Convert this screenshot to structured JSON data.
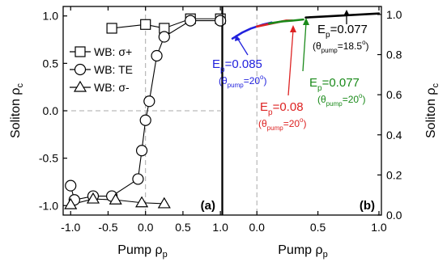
{
  "chart_data": [
    {
      "type": "scatter",
      "panel_label": "(a)",
      "ylabel_main": "Soliton ρ",
      "ylabel_sub": "c",
      "xlabel_main": "Pump ρ",
      "xlabel_sub": "p",
      "xlim": [
        -1.1,
        1.02
      ],
      "ylim": [
        -1.1,
        1.1
      ],
      "x_ticks": [
        -1.0,
        -0.5,
        0.0,
        0.5,
        1.0
      ],
      "x_tick_labels": [
        "-1.0",
        "-0.5",
        "0.0",
        "0.5",
        "1.0"
      ],
      "y_ticks": [
        -1.0,
        -0.5,
        0.0,
        0.5,
        1.0
      ],
      "y_tick_labels": [
        "-1.0",
        "-0.5",
        "0.0",
        "0.5",
        "1.0"
      ],
      "reference_lines": {
        "x": 0,
        "y": 0,
        "style": "dashed",
        "color": "#aaaaaa"
      },
      "legend_position": "upper-left",
      "series": [
        {
          "name": "WB: σ+",
          "marker": "square",
          "x": [
            -0.45,
            0.0,
            0.25,
            0.6,
            1.0
          ],
          "y": [
            0.87,
            0.91,
            0.87,
            0.97,
            0.97
          ]
        },
        {
          "name": "WB: TE",
          "marker": "circle",
          "x": [
            -1.0,
            -0.95,
            -0.7,
            -0.45,
            -0.1,
            -0.05,
            0.0,
            0.05,
            0.15,
            0.25,
            0.6,
            1.0
          ],
          "y": [
            -0.79,
            -0.94,
            -0.9,
            -0.9,
            -0.72,
            -0.42,
            -0.1,
            0.1,
            0.58,
            0.78,
            0.95,
            0.95
          ]
        },
        {
          "name": "WB: σ-",
          "marker": "triangle",
          "x": [
            -1.0,
            -0.7,
            -0.4,
            -0.05,
            0.25
          ],
          "y": [
            -0.99,
            -0.93,
            -0.94,
            -0.97,
            -0.98
          ]
        }
      ]
    },
    {
      "type": "line",
      "panel_label": "(b)",
      "ylabel_main": "Soliton ρ",
      "ylabel_sub": "c",
      "xlabel_main": "Pump ρ",
      "xlabel_sub": "p",
      "xlim": [
        -0.28,
        1.02
      ],
      "ylim": [
        0.0,
        1.04
      ],
      "x_ticks": [
        0.0,
        0.5,
        1.0
      ],
      "x_tick_labels": [
        "0.0",
        "0.5",
        "1.0"
      ],
      "y_ticks": [
        0.0,
        0.2,
        0.4,
        0.6,
        0.8,
        1.0
      ],
      "y_tick_labels": [
        "0.0",
        "0.2",
        "0.4",
        "0.6",
        "0.8",
        "1.0"
      ],
      "reference_lines": {
        "x": 0,
        "style": "dashed",
        "color": "#aaaaaa"
      },
      "series": [
        {
          "color": "#2222dd",
          "x": [
            -0.2,
            -0.12,
            -0.05,
            0.0,
            0.05,
            0.12
          ],
          "y": [
            0.88,
            0.91,
            0.93,
            0.94,
            0.95,
            0.96
          ]
        },
        {
          "color": "#dd2222",
          "x": [
            0.0,
            0.08,
            0.16,
            0.24,
            0.29
          ],
          "y": [
            0.94,
            0.95,
            0.96,
            0.97,
            0.97
          ]
        },
        {
          "color": "#1a8a1a",
          "x": [
            0.1,
            0.2,
            0.3,
            0.38
          ],
          "y": [
            0.955,
            0.965,
            0.97,
            0.975
          ]
        },
        {
          "color": "#000000",
          "x": [
            0.4,
            0.55,
            0.7,
            0.85,
            1.0
          ],
          "y": [
            0.985,
            0.99,
            0.995,
            1.0,
            1.005
          ]
        }
      ],
      "annotations": [
        {
          "color": "#2222dd",
          "line1": "E",
          "line1_sub": "p",
          "line1_rest": "=0.085",
          "line2": "(θ",
          "line2_sub": "pump",
          "line2_rest": "=20",
          "line2_deg": "o",
          "line2_end": ")"
        },
        {
          "color": "#dd2222",
          "line1": "E",
          "line1_sub": "p",
          "line1_rest": "=0.08",
          "line2": "(θ",
          "line2_sub": "pump",
          "line2_rest": "=20",
          "line2_deg": "o",
          "line2_end": ")"
        },
        {
          "color": "#1a8a1a",
          "line1": "E",
          "line1_sub": "p",
          "line1_rest": "=0.077",
          "line2": "(θ",
          "line2_sub": "pump",
          "line2_rest": "=20",
          "line2_deg": "o",
          "line2_end": ")"
        },
        {
          "color": "#000000",
          "line1": "E",
          "line1_sub": "p",
          "line1_rest": "=0.077",
          "line2": "(θ",
          "line2_sub": "pump",
          "line2_rest": "=18.5",
          "line2_deg": "o",
          "line2_end": ")"
        }
      ]
    }
  ]
}
